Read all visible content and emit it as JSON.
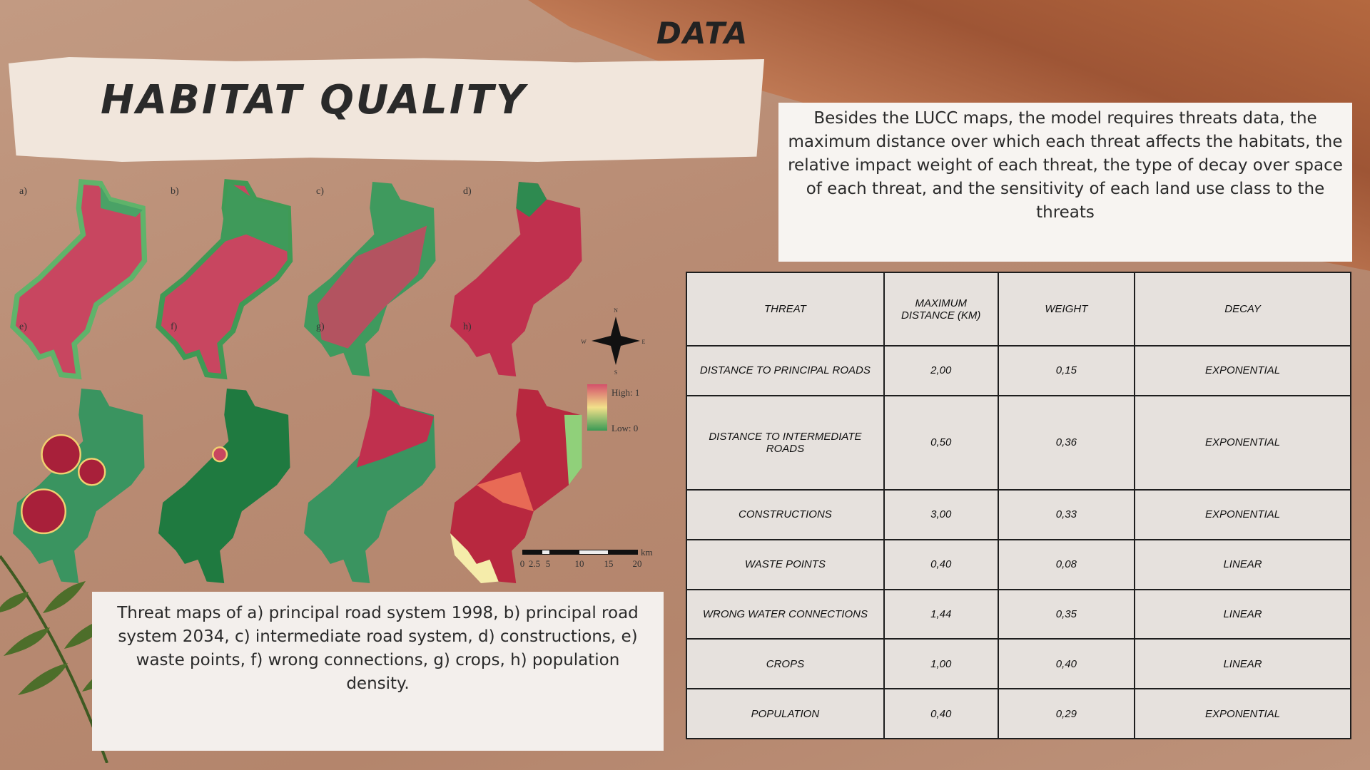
{
  "header": {
    "section": "DATA",
    "title": "HABITAT QUALITY"
  },
  "description": "Besides the LUCC maps, the model requires threats data, the maximum distance over which each threat affects the habitats, the relative impact weight of each threat, the type of decay over space of each threat, and the sensitivity of each land use class to the threats",
  "figure": {
    "panel_labels": [
      "a)",
      "b)",
      "c)",
      "d)",
      "e)",
      "f)",
      "g)",
      "h)"
    ],
    "legend": {
      "high": "High: 1",
      "low": "Low: 0"
    },
    "compass": {
      "north": "N",
      "west": "W",
      "east": "E",
      "south": "S"
    },
    "scale_bar": {
      "unit": "km",
      "ticks": [
        "0",
        "2.5",
        "5",
        "10",
        "15",
        "20"
      ]
    }
  },
  "caption": "Threat maps of a) principal road system 1998, b) principal road system 2034, c) intermediate road system, d) constructions, e) waste points, f) wrong connections, g) crops, h) population density.",
  "table": {
    "header": [
      "THREAT",
      "MAXIMUM DISTANCE (KM)",
      "WEIGHT",
      "DECAY"
    ],
    "rows": [
      [
        "DISTANCE TO PRINCIPAL ROADS",
        "2,00",
        "0,15",
        "EXPONENTIAL"
      ],
      [
        "DISTANCE TO INTERMEDIATE ROADS",
        "0,50",
        "0,36",
        "EXPONENTIAL"
      ],
      [
        "CONSTRUCTIONS",
        "3,00",
        "0,33",
        "EXPONENTIAL"
      ],
      [
        "WASTE POINTS",
        "0,40",
        "0,08",
        "LINEAR"
      ],
      [
        "WRONG WATER CONNECTIONS",
        "1,44",
        "0,35",
        "LINEAR"
      ],
      [
        "CROPS",
        "1,00",
        "0,40",
        "LINEAR"
      ],
      [
        "POPULATION",
        "0,40",
        "0,29",
        "EXPONENTIAL"
      ]
    ]
  }
}
